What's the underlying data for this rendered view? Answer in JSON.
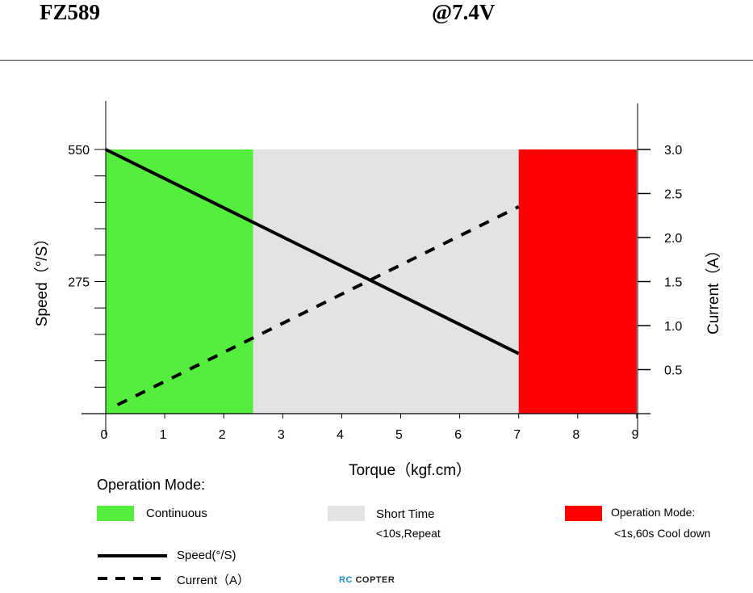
{
  "header": {
    "model": "FZ589",
    "voltage": "@7.4V"
  },
  "chart_data": {
    "type": "line",
    "xlabel": "Torque（kgf.cm）",
    "ylabel_left": "Speed（°/S）",
    "ylabel_right": "Current（A）",
    "xlim": [
      0,
      9
    ],
    "ylim_left": [
      0,
      550
    ],
    "ylim_right": [
      0,
      3.0
    ],
    "x_ticks": [
      "0",
      "1",
      "2",
      "3",
      "4",
      "5",
      "6",
      "7",
      "8",
      "9"
    ],
    "y_left_ticks": [
      "550",
      "275"
    ],
    "y_right_ticks": [
      "3.0",
      "2.5",
      "2.0",
      "1.5",
      "1.0",
      "0.5"
    ],
    "y_right_tick_values": [
      3.0,
      2.5,
      2.0,
      1.5,
      1.0,
      0.5
    ],
    "regions": [
      {
        "name": "Continuous",
        "x_start": 0,
        "x_end": 2.5,
        "color": "#55ee3f"
      },
      {
        "name": "Short Time",
        "x_start": 2.5,
        "x_end": 7,
        "color": "#e3e3e3"
      },
      {
        "name": "Operation Mode",
        "x_start": 7,
        "x_end": 9,
        "color": "#ff0000"
      }
    ],
    "series": [
      {
        "name": "Speed(°/S)",
        "axis": "left",
        "style": "solid",
        "color": "#000000",
        "x": [
          0,
          7
        ],
        "y": [
          550,
          125
        ]
      },
      {
        "name": "Current（A）",
        "axis": "right",
        "style": "dashed",
        "color": "#000000",
        "x": [
          0.2,
          7
        ],
        "y": [
          0.1,
          2.35
        ]
      }
    ],
    "grid": false,
    "legend_placement": "bottom"
  },
  "legend": {
    "heading": "Operation Mode:",
    "continuous": {
      "label": "Continuous",
      "color": "#55ee3f"
    },
    "short_time": {
      "label": "Short Time",
      "note": "<10s,Repeat",
      "color": "#e3e3e3"
    },
    "operation": {
      "label": "Operation Mode:",
      "note": "<1s,60s Cool down",
      "color": "#ff0000"
    },
    "speed_line": "Speed(°/S)",
    "current_line": "Current（A）"
  },
  "logo": {
    "rc": "RC",
    "copter": "COPTER"
  }
}
